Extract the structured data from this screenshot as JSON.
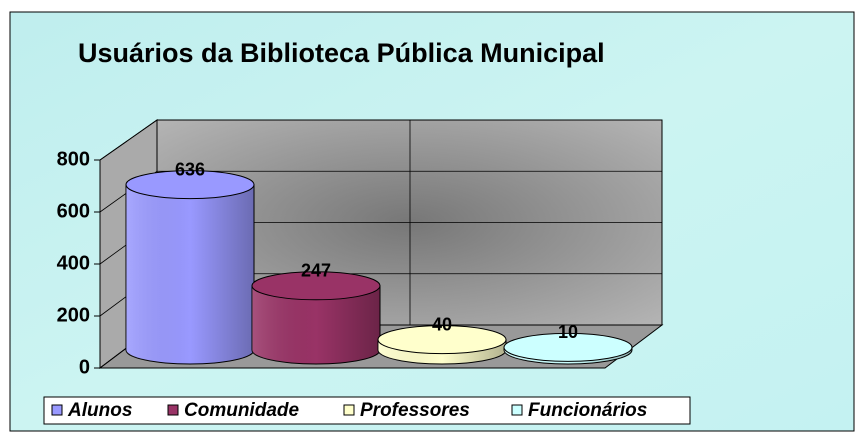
{
  "chart_data": {
    "type": "bar",
    "title": "Usuários da Biblioteca Pública Municipal",
    "categories": [
      "Alunos",
      "Comunidade",
      "Professores",
      "Funcionários"
    ],
    "series": [
      {
        "name": "Alunos",
        "color": "#9999ff"
      },
      {
        "name": "Comunidade",
        "color": "#993366"
      },
      {
        "name": "Professores",
        "color": "#ffffcc"
      },
      {
        "name": "Funcionários",
        "color": "#ccffff"
      }
    ],
    "values": [
      636,
      247,
      40,
      10
    ],
    "ylim": [
      0,
      800
    ],
    "yticks": [
      0,
      200,
      400,
      600,
      800
    ],
    "grid": true,
    "legend": "bottom"
  }
}
